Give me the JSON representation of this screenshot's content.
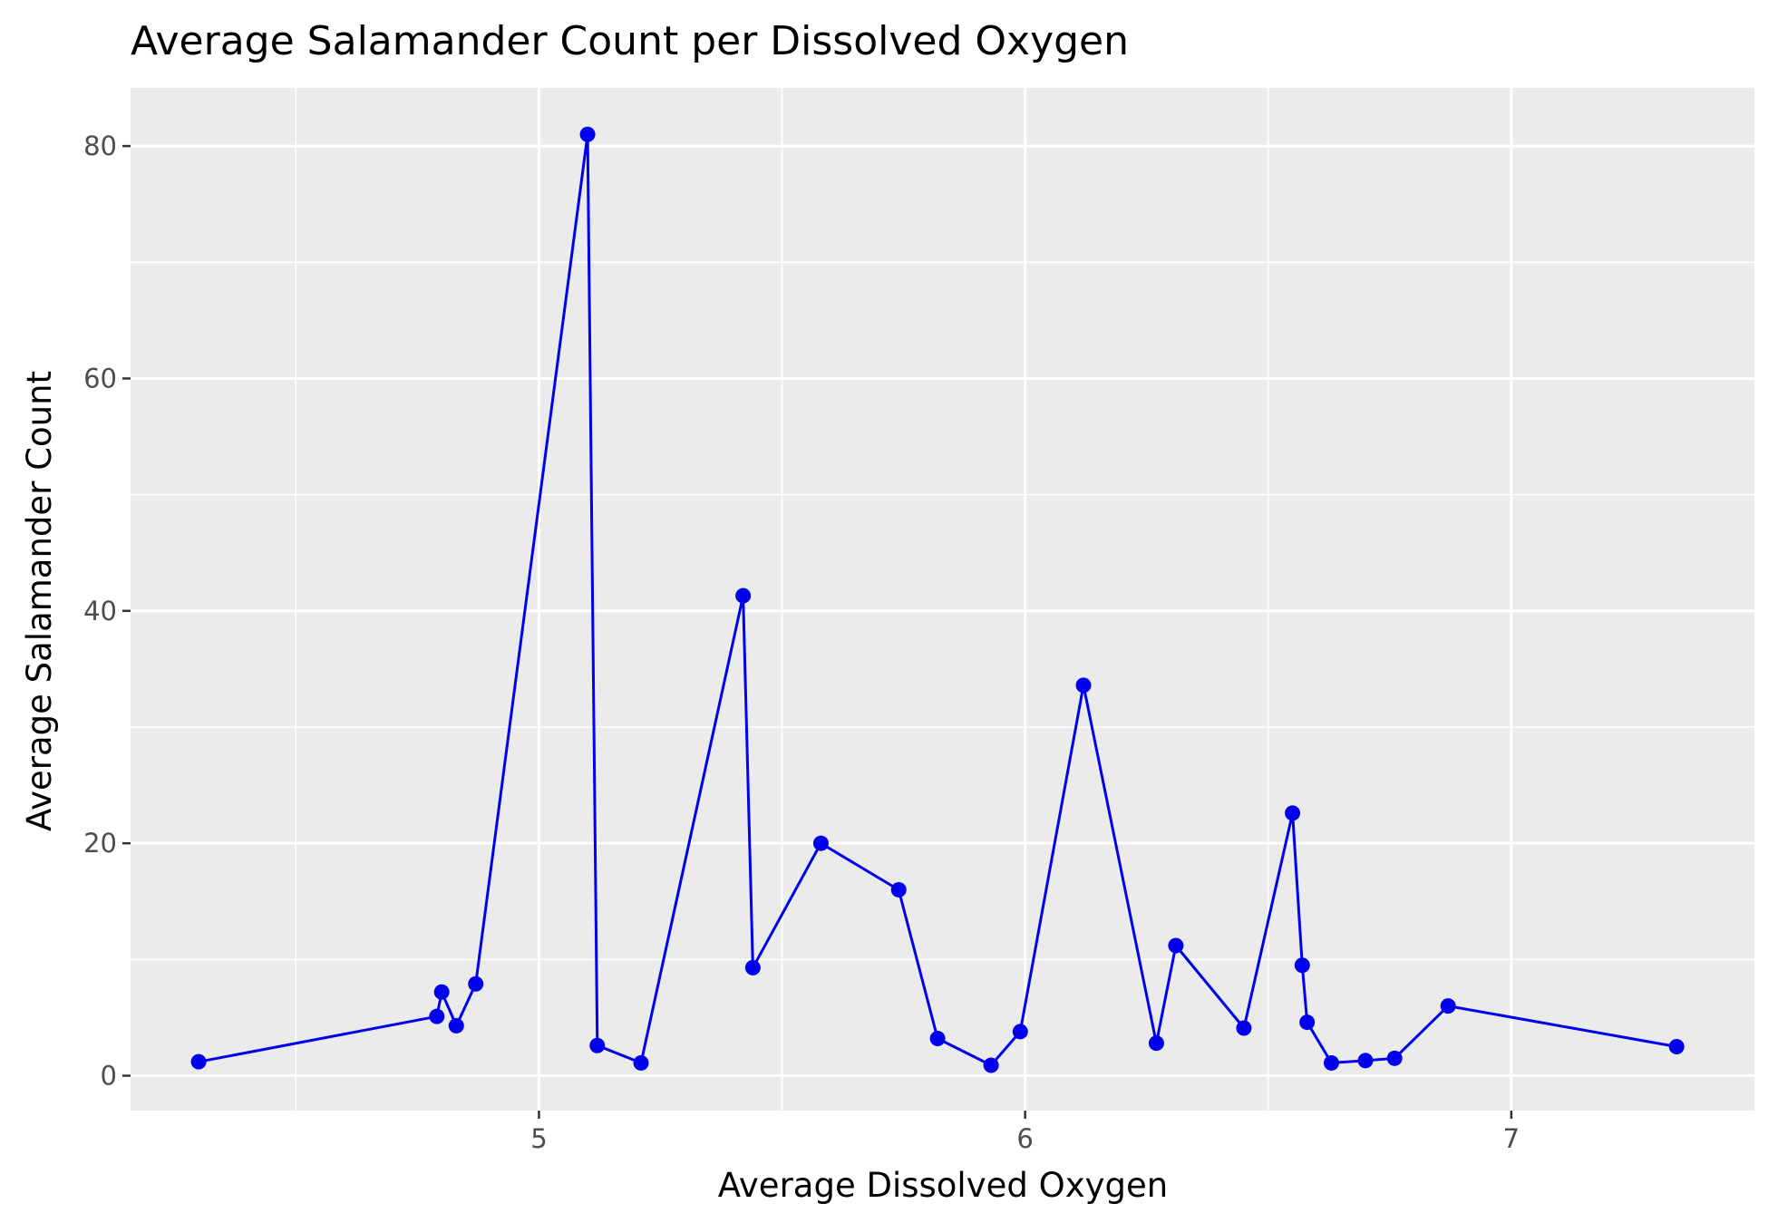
{
  "chart_data": {
    "type": "line",
    "title": "Average Salamander Count per Dissolved Oxygen",
    "xlabel": "Average Dissolved Oxygen",
    "ylabel": "Average Salamander Count",
    "xlim": [
      4.16,
      7.5
    ],
    "ylim": [
      -3,
      85
    ],
    "x_ticks": [
      5,
      6,
      7
    ],
    "x_tick_labels": [
      "5",
      "6",
      "7"
    ],
    "x_minor_ticks": [
      4.5,
      5.5,
      6.5
    ],
    "y_ticks": [
      0,
      20,
      40,
      60,
      80
    ],
    "y_tick_labels": [
      "0",
      "20",
      "40",
      "60",
      "80"
    ],
    "y_minor_ticks": [
      10,
      30,
      50,
      70
    ],
    "grid": true,
    "legend": "none",
    "series": [
      {
        "color": "#0000EE",
        "x": [
          4.3,
          4.79,
          4.8,
          4.83,
          4.87,
          5.1,
          5.12,
          5.21,
          5.42,
          5.44,
          5.58,
          5.74,
          5.82,
          5.93,
          5.99,
          6.12,
          6.27,
          6.31,
          6.45,
          6.55,
          6.57,
          6.58,
          6.63,
          6.7,
          6.76,
          6.87,
          7.34
        ],
        "y": [
          1.2,
          5.1,
          7.2,
          4.3,
          7.9,
          81,
          2.6,
          1.1,
          41.3,
          9.3,
          20,
          16,
          3.2,
          0.9,
          3.8,
          33.6,
          2.8,
          11.2,
          4.1,
          22.6,
          9.5,
          4.6,
          1.1,
          1.3,
          1.5,
          6,
          2.5
        ]
      }
    ]
  }
}
